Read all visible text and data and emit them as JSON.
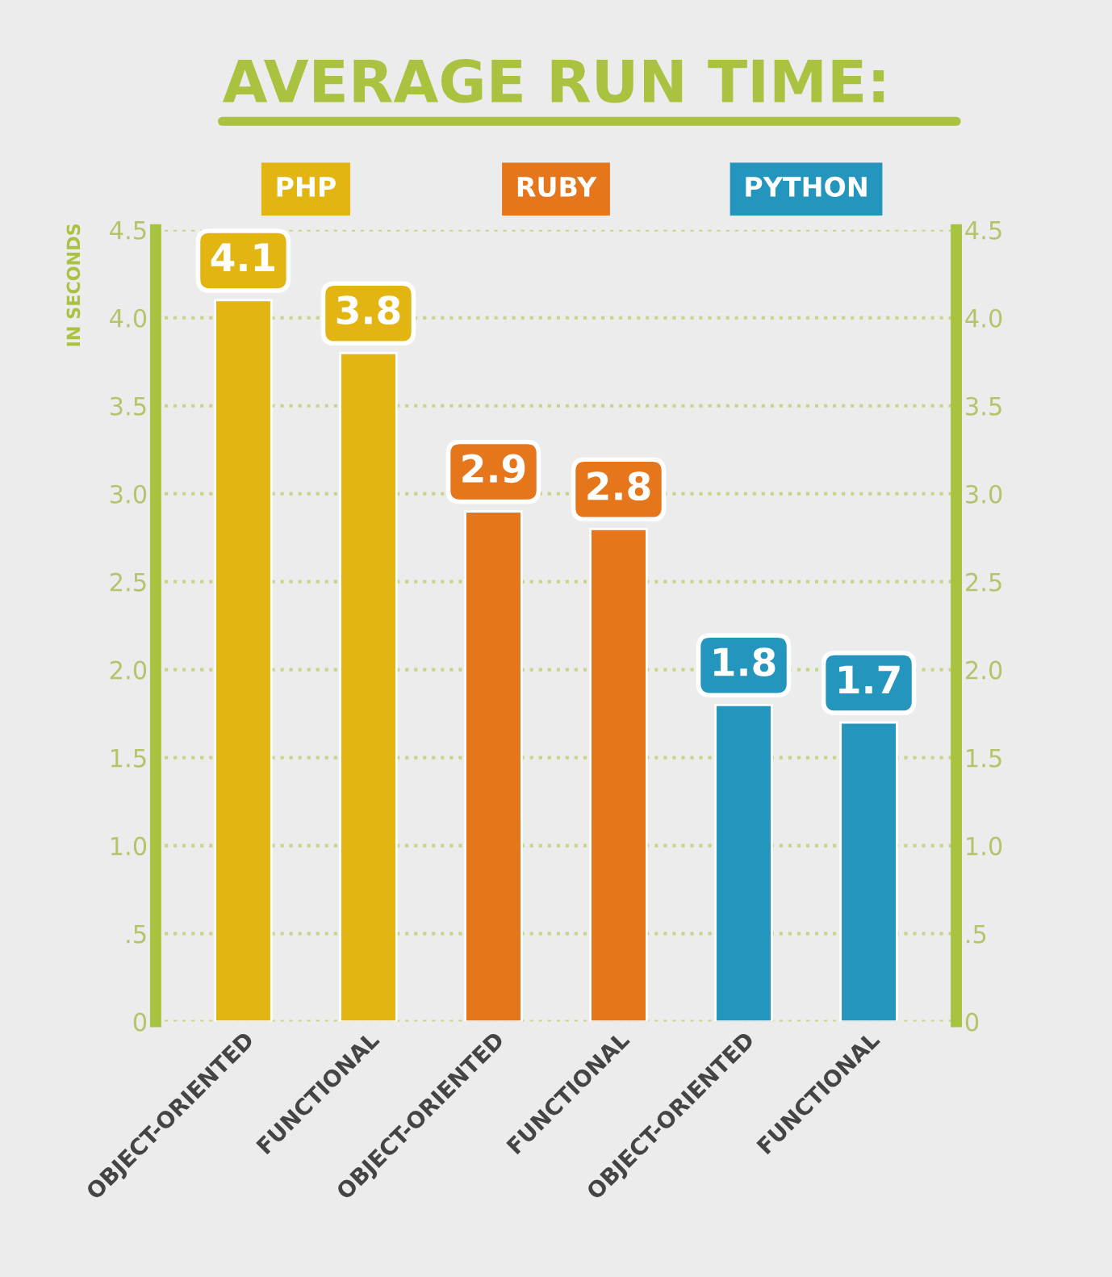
{
  "chart_data": {
    "type": "bar",
    "title": "AVERAGE RUN TIME:",
    "ylabel": "IN SECONDS",
    "categories": [
      "OBJECT-ORIENTED",
      "FUNCTIONAL",
      "OBJECT-ORIENTED",
      "FUNCTIONAL",
      "OBJECT-ORIENTED",
      "FUNCTIONAL"
    ],
    "series": [
      {
        "name": "PHP",
        "color": "#e2b512",
        "values": [
          4.1,
          3.8,
          null,
          null,
          null,
          null
        ]
      },
      {
        "name": "RUBY",
        "color": "#e5761c",
        "values": [
          null,
          null,
          2.9,
          2.8,
          null,
          null
        ]
      },
      {
        "name": "PYTHON",
        "color": "#2495bd",
        "values": [
          null,
          null,
          null,
          null,
          1.8,
          1.7
        ]
      }
    ],
    "ylim": [
      0,
      4.5
    ],
    "yticks": [
      0,
      {
        "value": 0.5,
        "label": ".5"
      },
      {
        "value": 1,
        "label": "1.0"
      },
      {
        "value": 1.5,
        "label": "1.5"
      },
      {
        "value": 2,
        "label": "2.0"
      },
      {
        "value": 2.5,
        "label": "2.5"
      },
      {
        "value": 3,
        "label": "3.0"
      },
      {
        "value": 3.5,
        "label": "3.5"
      },
      {
        "value": 4,
        "label": "4.0"
      },
      4.5
    ],
    "y2lim": [
      0,
      4.5
    ],
    "y2ticks": [
      0,
      {
        "value": 0.5,
        "label": ".5"
      },
      {
        "value": 1,
        "label": "1.0"
      },
      {
        "value": 1.5,
        "label": "1.5"
      },
      {
        "value": 2,
        "label": "2.0"
      },
      {
        "value": 2.5,
        "label": "2.5"
      },
      {
        "value": 3,
        "label": "3.0"
      },
      {
        "value": 3.5,
        "label": "3.5"
      },
      {
        "value": 4,
        "label": "4.0"
      },
      4.5
    ],
    "grid": "y",
    "data_labels": true,
    "legend": false
  }
}
